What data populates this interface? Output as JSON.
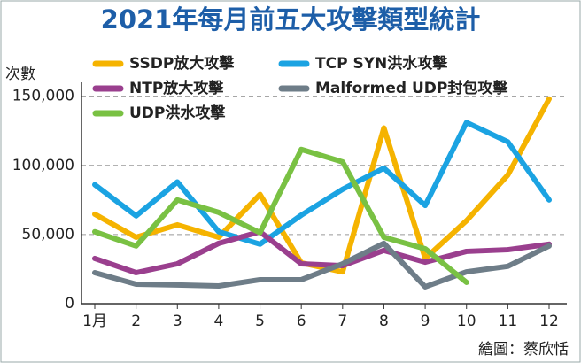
{
  "chart_data": {
    "type": "line",
    "title": "2021年每月前五大攻擊類型統計",
    "y_label": "次數",
    "credit": "繪圖：蔡欣恬",
    "categories": [
      "1月",
      "2",
      "3",
      "4",
      "5",
      "6",
      "7",
      "8",
      "9",
      "10",
      "11",
      "12"
    ],
    "series": [
      {
        "name": "SSDP放大攻擊",
        "color": "#f5b300",
        "values": [
          64700,
          48000,
          57000,
          48000,
          79000,
          29500,
          23000,
          127000,
          32700,
          60000,
          93000,
          148000
        ]
      },
      {
        "name": "TCP SYN洪水攻擊",
        "color": "#1ba3e2",
        "values": [
          86000,
          63500,
          88000,
          52000,
          43000,
          64000,
          82700,
          98000,
          71000,
          131000,
          117000,
          75000
        ]
      },
      {
        "name": "NTP放大攻擊",
        "color": "#9a3f8e",
        "values": [
          32700,
          22400,
          28800,
          43600,
          52000,
          28800,
          27500,
          38500,
          30000,
          37800,
          39000,
          43000
        ]
      },
      {
        "name": "Malformed UDP封包攻擊",
        "color": "#6e7d88",
        "values": [
          22400,
          14100,
          13500,
          12800,
          17300,
          17300,
          28800,
          43600,
          12200,
          23000,
          27000,
          41700
        ]
      },
      {
        "name": "UDP洪水攻擊",
        "color": "#79c143",
        "values": [
          52000,
          41700,
          75000,
          66000,
          51300,
          111500,
          102500,
          48000,
          39700,
          15400,
          null,
          null
        ]
      }
    ],
    "ylim": [
      0,
      160000
    ],
    "yticks": [
      0,
      {
        "value": 50000,
        "label": "50,000"
      },
      {
        "value": 100000,
        "label": "100,000"
      },
      {
        "value": 150000,
        "label": "150,000"
      }
    ],
    "grid": true
  }
}
